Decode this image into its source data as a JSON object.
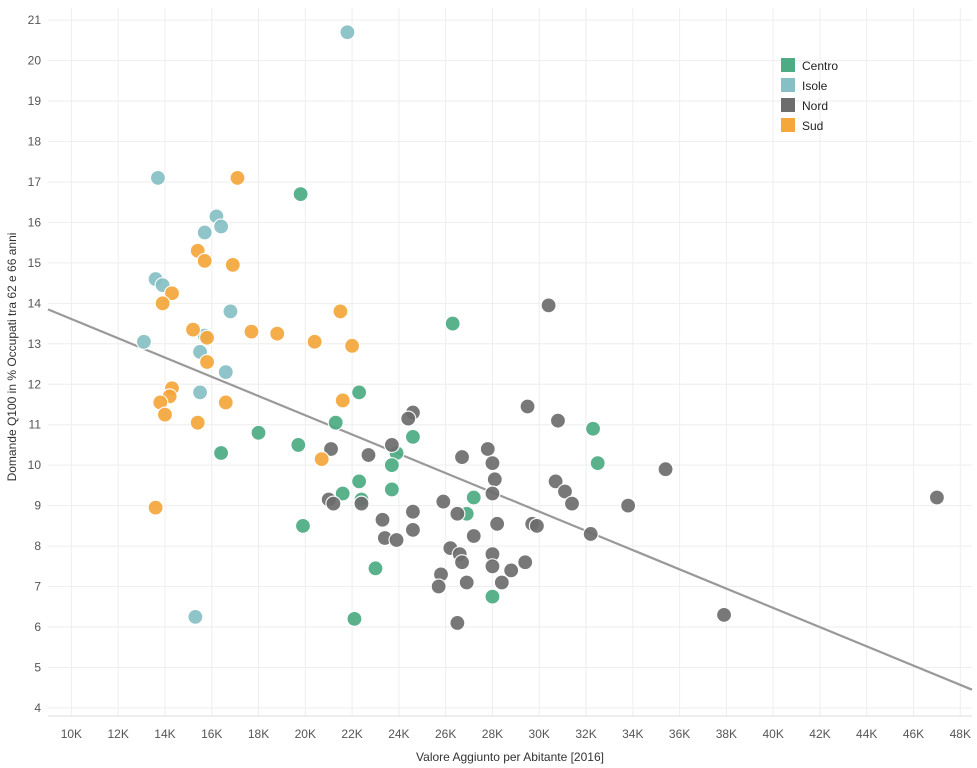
{
  "chart_data": {
    "type": "scatter",
    "xlabel": "Valore Aggiunto per Abitante [2016]",
    "ylabel": "Domande Q100 in % Occupati tra 62 e 66 anni",
    "xlim": [
      9000,
      48500
    ],
    "ylim": [
      3.8,
      21.3
    ],
    "x_ticks": [
      10000,
      12000,
      14000,
      16000,
      18000,
      20000,
      22000,
      24000,
      26000,
      28000,
      30000,
      32000,
      34000,
      36000,
      38000,
      40000,
      42000,
      44000,
      46000,
      48000
    ],
    "x_tick_labels": [
      "10K",
      "12K",
      "14K",
      "16K",
      "18K",
      "20K",
      "22K",
      "24K",
      "26K",
      "28K",
      "30K",
      "32K",
      "34K",
      "36K",
      "38K",
      "40K",
      "42K",
      "44K",
      "46K",
      "48K"
    ],
    "y_ticks": [
      4,
      5,
      6,
      7,
      8,
      9,
      10,
      11,
      12,
      13,
      14,
      15,
      16,
      17,
      18,
      19,
      20,
      21
    ],
    "y_tick_labels": [
      "4",
      "5",
      "6",
      "7",
      "8",
      "9",
      "10",
      "11",
      "12",
      "13",
      "14",
      "15",
      "16",
      "17",
      "18",
      "19",
      "20",
      "21"
    ],
    "grid": true,
    "legend_position": "top-right",
    "trend_line": {
      "x": [
        9000,
        48500
      ],
      "y": [
        13.85,
        4.45
      ],
      "color": "#999999"
    },
    "series": [
      {
        "name": "Centro",
        "color": "#4dac84",
        "points": [
          [
            19800,
            16.7
          ],
          [
            26300,
            13.5
          ],
          [
            32300,
            10.9
          ],
          [
            32500,
            10.05
          ],
          [
            22300,
            11.8
          ],
          [
            21300,
            11.05
          ],
          [
            24600,
            10.7
          ],
          [
            18000,
            10.8
          ],
          [
            19700,
            10.5
          ],
          [
            16400,
            10.3
          ],
          [
            23900,
            10.3
          ],
          [
            23700,
            10.0
          ],
          [
            22300,
            9.6
          ],
          [
            23700,
            9.4
          ],
          [
            21600,
            9.3
          ],
          [
            22400,
            9.15
          ],
          [
            27200,
            9.2
          ],
          [
            26900,
            8.8
          ],
          [
            19900,
            8.5
          ],
          [
            23000,
            7.45
          ],
          [
            28000,
            6.75
          ],
          [
            22100,
            6.2
          ]
        ]
      },
      {
        "name": "Isole",
        "color": "#86c0c4",
        "points": [
          [
            21800,
            20.7
          ],
          [
            13700,
            17.1
          ],
          [
            16200,
            16.15
          ],
          [
            16400,
            15.9
          ],
          [
            15700,
            15.75
          ],
          [
            13600,
            14.6
          ],
          [
            13900,
            14.45
          ],
          [
            16800,
            13.8
          ],
          [
            15700,
            13.2
          ],
          [
            13100,
            13.05
          ],
          [
            15500,
            12.8
          ],
          [
            16600,
            12.3
          ],
          [
            15500,
            11.8
          ],
          [
            15300,
            6.25
          ]
        ]
      },
      {
        "name": "Nord",
        "color": "#6d6d6d",
        "points": [
          [
            30400,
            13.95
          ],
          [
            29500,
            11.45
          ],
          [
            30800,
            11.1
          ],
          [
            24600,
            11.3
          ],
          [
            24400,
            11.15
          ],
          [
            23700,
            10.5
          ],
          [
            21100,
            10.4
          ],
          [
            22700,
            10.25
          ],
          [
            26700,
            10.2
          ],
          [
            27800,
            10.4
          ],
          [
            28000,
            10.05
          ],
          [
            28100,
            9.65
          ],
          [
            35400,
            9.9
          ],
          [
            30700,
            9.6
          ],
          [
            31100,
            9.35
          ],
          [
            28000,
            9.3
          ],
          [
            31400,
            9.05
          ],
          [
            33800,
            9.0
          ],
          [
            47000,
            9.2
          ],
          [
            21000,
            9.15
          ],
          [
            21200,
            9.05
          ],
          [
            22400,
            9.05
          ],
          [
            25900,
            9.1
          ],
          [
            24600,
            8.85
          ],
          [
            26500,
            8.8
          ],
          [
            23300,
            8.65
          ],
          [
            28200,
            8.55
          ],
          [
            29700,
            8.55
          ],
          [
            29900,
            8.5
          ],
          [
            24600,
            8.4
          ],
          [
            27200,
            8.25
          ],
          [
            23400,
            8.2
          ],
          [
            23900,
            8.15
          ],
          [
            32200,
            8.3
          ],
          [
            26200,
            7.95
          ],
          [
            26600,
            7.8
          ],
          [
            28000,
            7.8
          ],
          [
            26700,
            7.6
          ],
          [
            29400,
            7.6
          ],
          [
            28000,
            7.5
          ],
          [
            28800,
            7.4
          ],
          [
            25800,
            7.3
          ],
          [
            26900,
            7.1
          ],
          [
            28400,
            7.1
          ],
          [
            25700,
            7.0
          ],
          [
            37900,
            6.3
          ],
          [
            26500,
            6.1
          ]
        ]
      },
      {
        "name": "Sud",
        "color": "#f5a73b",
        "points": [
          [
            17100,
            17.1
          ],
          [
            15400,
            15.3
          ],
          [
            15700,
            15.05
          ],
          [
            16900,
            14.95
          ],
          [
            14300,
            14.25
          ],
          [
            13900,
            14.0
          ],
          [
            21500,
            13.8
          ],
          [
            15200,
            13.35
          ],
          [
            17700,
            13.3
          ],
          [
            18800,
            13.25
          ],
          [
            15800,
            13.15
          ],
          [
            20400,
            13.05
          ],
          [
            22000,
            12.95
          ],
          [
            15800,
            12.55
          ],
          [
            14300,
            11.9
          ],
          [
            14200,
            11.7
          ],
          [
            13800,
            11.55
          ],
          [
            16600,
            11.55
          ],
          [
            21600,
            11.6
          ],
          [
            14000,
            11.25
          ],
          [
            15400,
            11.05
          ],
          [
            20700,
            10.15
          ],
          [
            13600,
            8.95
          ]
        ]
      }
    ]
  }
}
